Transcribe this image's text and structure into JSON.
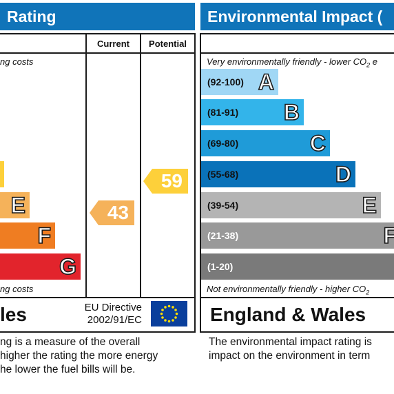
{
  "energy": {
    "title": "Rating",
    "col_current": "Current",
    "col_potential": "Potential",
    "note_top": "ng costs",
    "note_bottom": "ng costs",
    "bands": [
      {
        "letter": "E",
        "color": "#f5b25a"
      },
      {
        "letter": "F",
        "color": "#ef7d22"
      },
      {
        "letter": "G",
        "color": "#e2242c"
      }
    ],
    "d_band_color": "#fdd03a",
    "current_rating": "43",
    "current_color": "#f5b25a",
    "potential_rating": "59",
    "potential_color": "#fdd03a",
    "footer_region": "les",
    "eu_line1": "EU Directive",
    "eu_line2": "2002/91/EC",
    "desc_lines": [
      "ng is a measure of the overall",
      "higher the rating the more energy",
      "he lower the fuel bills will be."
    ]
  },
  "environmental": {
    "title": "Environmental Impact (",
    "note_top_pre": "Very environmentally friendly - lower CO",
    "note_top_sub": "2",
    "note_top_post": " e",
    "note_bottom_pre": "Not environmentally friendly - higher CO",
    "note_bottom_sub": "2",
    "bands": [
      {
        "range": "(92-100)",
        "letter": "A",
        "color": "#a0d7f5",
        "range_color": "#111111"
      },
      {
        "range": "(81-91)",
        "letter": "B",
        "color": "#33b4ea",
        "range_color": "#111111"
      },
      {
        "range": "(69-80)",
        "letter": "C",
        "color": "#1f9bd8",
        "range_color": "#111111"
      },
      {
        "range": "(55-68)",
        "letter": "D",
        "color": "#0a72b9",
        "range_color": "#111111"
      },
      {
        "range": "(39-54)",
        "letter": "E",
        "color": "#b4b4b4",
        "range_color": "#111111"
      },
      {
        "range": "(21-38)",
        "letter": "F",
        "color": "#999999",
        "range_color": "#ffffff"
      },
      {
        "range": "(1-20)",
        "letter": "",
        "color": "#7a7a7a",
        "range_color": "#ffffff"
      }
    ],
    "footer_region": "England & Wales",
    "desc_lines": [
      "The environmental impact rating is",
      "impact on the environment in term"
    ]
  }
}
